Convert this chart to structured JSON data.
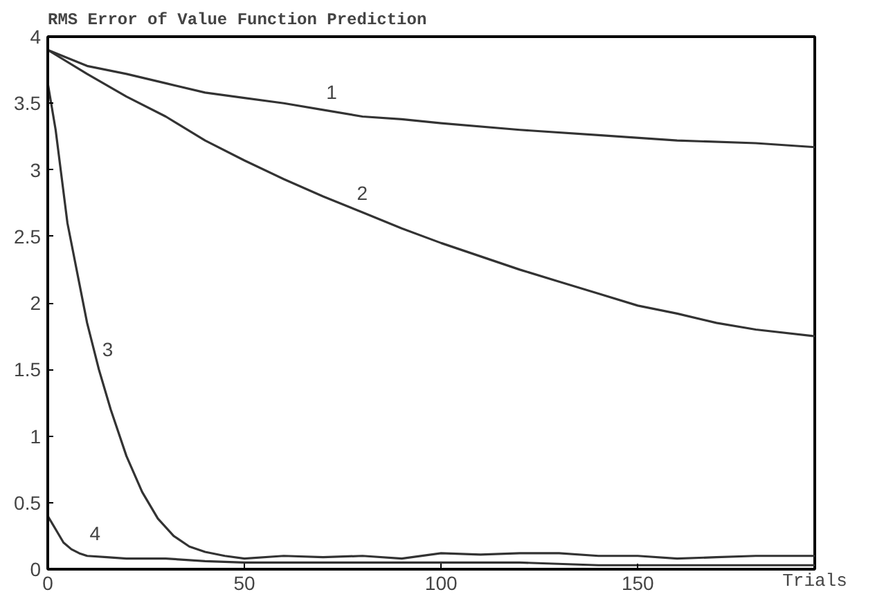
{
  "chart_data": {
    "type": "line",
    "title": "RMS Error of Value Function Prediction",
    "xlabel": "Trials",
    "xlim": [
      0,
      195
    ],
    "ylim": [
      0,
      4
    ],
    "xticks": [
      0,
      50,
      100,
      150
    ],
    "yticks": [
      0,
      0.5,
      1,
      1.5,
      2,
      2.5,
      3,
      3.5,
      4
    ],
    "grid": false,
    "legend": false,
    "marker": "none",
    "line_style": "solid",
    "series": [
      {
        "name": "1",
        "color": "#333333",
        "x": [
          0,
          10,
          20,
          30,
          40,
          50,
          60,
          70,
          80,
          90,
          100,
          120,
          140,
          160,
          180,
          195
        ],
        "values": [
          3.9,
          3.78,
          3.72,
          3.65,
          3.58,
          3.54,
          3.5,
          3.45,
          3.4,
          3.38,
          3.35,
          3.3,
          3.26,
          3.22,
          3.2,
          3.17
        ]
      },
      {
        "name": "2",
        "color": "#333333",
        "x": [
          0,
          10,
          20,
          30,
          40,
          50,
          60,
          70,
          80,
          90,
          100,
          110,
          120,
          130,
          140,
          150,
          160,
          170,
          180,
          195
        ],
        "values": [
          3.9,
          3.72,
          3.55,
          3.4,
          3.22,
          3.07,
          2.93,
          2.8,
          2.68,
          2.56,
          2.45,
          2.35,
          2.25,
          2.16,
          2.07,
          1.98,
          1.92,
          1.85,
          1.8,
          1.75
        ]
      },
      {
        "name": "3",
        "color": "#333333",
        "x": [
          0,
          2,
          5,
          8,
          10,
          13,
          16,
          20,
          24,
          28,
          32,
          36,
          40,
          45,
          50,
          60,
          70,
          80,
          90,
          100,
          110,
          120,
          130,
          140,
          150,
          160,
          170,
          180,
          195
        ],
        "values": [
          3.65,
          3.3,
          2.6,
          2.15,
          1.85,
          1.5,
          1.2,
          0.85,
          0.58,
          0.38,
          0.25,
          0.17,
          0.13,
          0.1,
          0.08,
          0.1,
          0.09,
          0.1,
          0.08,
          0.12,
          0.11,
          0.12,
          0.12,
          0.1,
          0.1,
          0.08,
          0.09,
          0.1,
          0.1
        ]
      },
      {
        "name": "4",
        "color": "#333333",
        "x": [
          0,
          2,
          4,
          6,
          8,
          10,
          15,
          20,
          30,
          40,
          50,
          60,
          80,
          100,
          120,
          140,
          160,
          180,
          195
        ],
        "values": [
          0.4,
          0.3,
          0.2,
          0.15,
          0.12,
          0.1,
          0.09,
          0.08,
          0.08,
          0.06,
          0.05,
          0.05,
          0.05,
          0.05,
          0.05,
          0.03,
          0.03,
          0.03,
          0.03
        ]
      }
    ]
  }
}
